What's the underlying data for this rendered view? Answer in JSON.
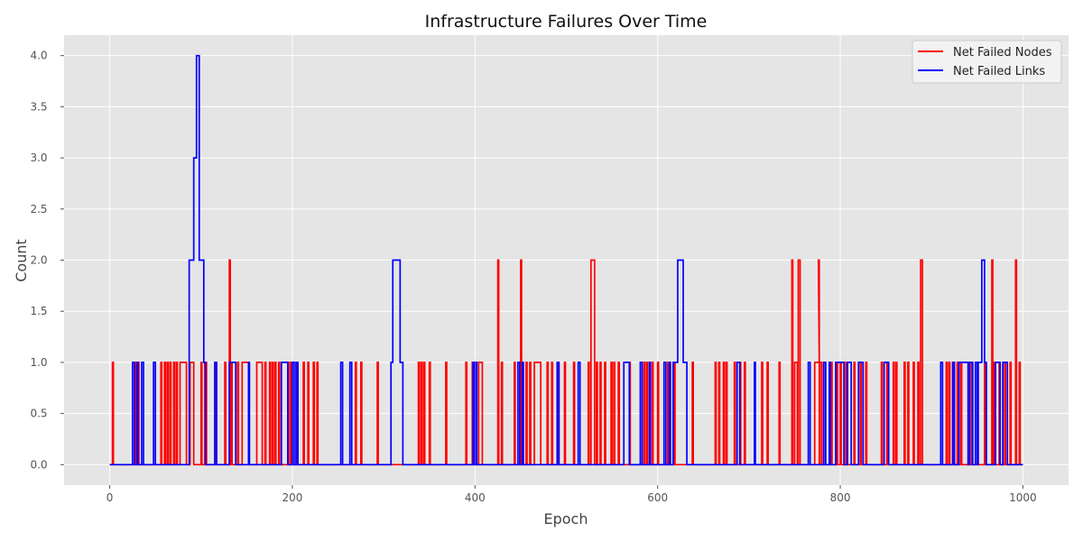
{
  "chart_data": {
    "type": "line",
    "title": "Infrastructure Failures Over Time",
    "xlabel": "Epoch",
    "ylabel": "Count",
    "xlim": [
      -50,
      1050
    ],
    "ylim": [
      -0.2,
      4.2
    ],
    "xticks": [
      0,
      200,
      400,
      600,
      800,
      1000
    ],
    "xtick_labels": [
      "0",
      "200",
      "400",
      "600",
      "800",
      "1000"
    ],
    "yticks": [
      0,
      0.5,
      1,
      1.5,
      2,
      2.5,
      3,
      3.5,
      4
    ],
    "ytick_labels": [
      "0.0",
      "0.5",
      "1.0",
      "1.5",
      "2.0",
      "2.5",
      "3.0",
      "3.5",
      "4.0"
    ],
    "grid": true,
    "legend": "top-right",
    "background": "#e5e5e5",
    "series": [
      {
        "name": "Net Failed Nodes",
        "color": "#ff0000",
        "step_segments": [
          [
            3,
            4,
            1
          ],
          [
            28,
            29,
            1
          ],
          [
            31,
            32,
            1
          ],
          [
            56,
            57,
            1
          ],
          [
            60,
            61,
            1
          ],
          [
            63,
            64,
            1
          ],
          [
            66,
            67,
            1
          ],
          [
            70,
            71,
            1
          ],
          [
            73,
            74,
            1
          ],
          [
            77,
            84,
            1
          ],
          [
            88,
            92,
            1
          ],
          [
            100,
            101,
            1
          ],
          [
            104,
            106,
            1
          ],
          [
            116,
            117,
            1
          ],
          [
            126,
            127,
            1
          ],
          [
            131,
            132,
            2
          ],
          [
            133,
            134,
            1
          ],
          [
            140,
            141,
            1
          ],
          [
            145,
            152,
            1
          ],
          [
            161,
            167,
            1
          ],
          [
            170,
            171,
            1
          ],
          [
            175,
            176,
            1
          ],
          [
            178,
            179,
            1
          ],
          [
            181,
            182,
            1
          ],
          [
            185,
            186,
            1
          ],
          [
            195,
            196,
            1
          ],
          [
            198,
            199,
            1
          ],
          [
            205,
            206,
            1
          ],
          [
            212,
            213,
            1
          ],
          [
            217,
            218,
            1
          ],
          [
            223,
            224,
            1
          ],
          [
            227,
            228,
            1
          ],
          [
            269,
            270,
            1
          ],
          [
            275,
            276,
            1
          ],
          [
            293,
            294,
            1
          ],
          [
            338,
            339,
            1
          ],
          [
            341,
            342,
            1
          ],
          [
            344,
            345,
            1
          ],
          [
            350,
            351,
            1
          ],
          [
            368,
            369,
            1
          ],
          [
            390,
            391,
            1
          ],
          [
            397,
            398,
            1
          ],
          [
            404,
            408,
            1
          ],
          [
            425,
            426,
            2
          ],
          [
            429,
            430,
            1
          ],
          [
            443,
            444,
            1
          ],
          [
            450,
            451,
            2
          ],
          [
            456,
            457,
            1
          ],
          [
            460,
            461,
            1
          ],
          [
            465,
            472,
            1
          ],
          [
            479,
            480,
            1
          ],
          [
            484,
            485,
            1
          ],
          [
            490,
            491,
            1
          ],
          [
            498,
            499,
            1
          ],
          [
            508,
            509,
            1
          ],
          [
            524,
            525,
            1
          ],
          [
            527,
            531,
            2
          ],
          [
            533,
            534,
            1
          ],
          [
            537,
            538,
            1
          ],
          [
            542,
            543,
            1
          ],
          [
            549,
            550,
            1
          ],
          [
            552,
            553,
            1
          ],
          [
            557,
            558,
            1
          ],
          [
            569,
            570,
            1
          ],
          [
            585,
            586,
            1
          ],
          [
            588,
            589,
            1
          ],
          [
            594,
            595,
            1
          ],
          [
            600,
            601,
            1
          ],
          [
            611,
            612,
            1
          ],
          [
            618,
            619,
            1
          ],
          [
            638,
            639,
            1
          ],
          [
            663,
            664,
            1
          ],
          [
            667,
            668,
            1
          ],
          [
            672,
            673,
            1
          ],
          [
            675,
            676,
            1
          ],
          [
            684,
            685,
            1
          ],
          [
            690,
            691,
            1
          ],
          [
            695,
            696,
            1
          ],
          [
            714,
            715,
            1
          ],
          [
            720,
            721,
            1
          ],
          [
            733,
            734,
            1
          ],
          [
            747,
            748,
            2
          ],
          [
            750,
            753,
            1
          ],
          [
            754,
            756,
            2
          ],
          [
            772,
            777,
            1
          ],
          [
            776,
            777,
            2
          ],
          [
            778,
            780,
            1
          ],
          [
            790,
            791,
            1
          ],
          [
            796,
            797,
            1
          ],
          [
            800,
            801,
            1
          ],
          [
            806,
            807,
            1
          ],
          [
            815,
            816,
            1
          ],
          [
            822,
            823,
            1
          ],
          [
            828,
            829,
            1
          ],
          [
            845,
            846,
            1
          ],
          [
            851,
            852,
            1
          ],
          [
            858,
            859,
            1
          ],
          [
            861,
            862,
            1
          ],
          [
            870,
            871,
            1
          ],
          [
            874,
            875,
            1
          ],
          [
            880,
            881,
            1
          ],
          [
            885,
            886,
            1
          ],
          [
            888,
            890,
            2
          ],
          [
            916,
            917,
            1
          ],
          [
            919,
            920,
            1
          ],
          [
            924,
            925,
            1
          ],
          [
            928,
            929,
            1
          ],
          [
            932,
            933,
            1
          ],
          [
            940,
            941,
            1
          ],
          [
            944,
            945,
            1
          ],
          [
            950,
            951,
            1
          ],
          [
            958,
            959,
            1
          ],
          [
            966,
            967,
            2
          ],
          [
            968,
            969,
            1
          ],
          [
            974,
            975,
            1
          ],
          [
            980,
            981,
            1
          ],
          [
            986,
            987,
            1
          ],
          [
            992,
            993,
            2
          ],
          [
            996,
            997,
            1
          ]
        ]
      },
      {
        "name": "Net Failed Links",
        "color": "#0000ff",
        "step_segments": [
          [
            25,
            27,
            1
          ],
          [
            30,
            31,
            1
          ],
          [
            35,
            37,
            1
          ],
          [
            48,
            50,
            1
          ],
          [
            87,
            92,
            2
          ],
          [
            92,
            95,
            3
          ],
          [
            95,
            98,
            4
          ],
          [
            98,
            103,
            2
          ],
          [
            103,
            105,
            1
          ],
          [
            115,
            117,
            1
          ],
          [
            131,
            138,
            1
          ],
          [
            152,
            153,
            1
          ],
          [
            188,
            195,
            1
          ],
          [
            200,
            202,
            1
          ],
          [
            204,
            206,
            1
          ],
          [
            253,
            255,
            1
          ],
          [
            263,
            265,
            1
          ],
          [
            308,
            310,
            1
          ],
          [
            310,
            318,
            2
          ],
          [
            318,
            321,
            1
          ],
          [
            398,
            399,
            1
          ],
          [
            401,
            402,
            1
          ],
          [
            447,
            449,
            1
          ],
          [
            452,
            453,
            1
          ],
          [
            490,
            492,
            1
          ],
          [
            513,
            515,
            1
          ],
          [
            563,
            569,
            1
          ],
          [
            581,
            583,
            1
          ],
          [
            591,
            592,
            1
          ],
          [
            607,
            609,
            1
          ],
          [
            613,
            614,
            1
          ],
          [
            617,
            622,
            1
          ],
          [
            622,
            628,
            2
          ],
          [
            628,
            632,
            1
          ],
          [
            687,
            690,
            1
          ],
          [
            706,
            707,
            1
          ],
          [
            765,
            767,
            1
          ],
          [
            782,
            784,
            1
          ],
          [
            788,
            789,
            1
          ],
          [
            795,
            800,
            1
          ],
          [
            800,
            804,
            1
          ],
          [
            808,
            812,
            1
          ],
          [
            820,
            825,
            1
          ],
          [
            848,
            853,
            1
          ],
          [
            910,
            912,
            1
          ],
          [
            923,
            925,
            1
          ],
          [
            930,
            940,
            1
          ],
          [
            942,
            945,
            1
          ],
          [
            948,
            950,
            1
          ],
          [
            951,
            955,
            1
          ],
          [
            955,
            958,
            2
          ],
          [
            958,
            960,
            1
          ],
          [
            970,
            975,
            1
          ],
          [
            978,
            983,
            1
          ]
        ]
      }
    ]
  }
}
